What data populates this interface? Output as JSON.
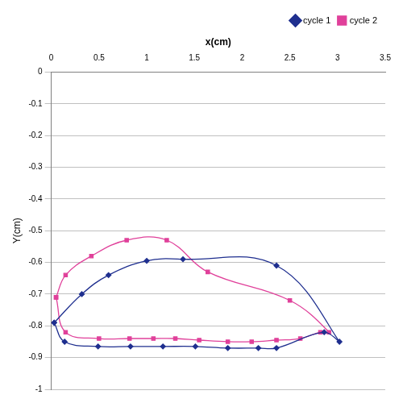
{
  "chart_data": {
    "type": "scatter",
    "x_label": "x(cm)",
    "y_label": "Y(cm)",
    "xlim": [
      0,
      3.5
    ],
    "xticks": [
      0,
      0.5,
      1,
      1.5,
      2,
      2.5,
      3,
      3.5
    ],
    "ylim": [
      -1,
      0
    ],
    "yticks": [
      -1,
      -0.9,
      -0.8,
      -0.7,
      -0.6,
      -0.5,
      -0.4,
      -0.3,
      -0.2,
      -0.1,
      0
    ],
    "grid": true,
    "legend": "top right",
    "series": [
      {
        "name": "cycle 1",
        "color": "#1f2f8f",
        "marker": "diamond",
        "line_style": "smooth",
        "x": [
          0.03,
          0.14,
          0.49,
          0.83,
          1.17,
          1.51,
          1.85,
          2.17,
          2.36,
          2.86,
          3.02,
          2.36,
          1.38,
          1.0,
          0.6,
          0.32,
          0.03
        ],
        "values": [
          -0.79,
          -0.85,
          -0.865,
          -0.865,
          -0.865,
          -0.865,
          -0.87,
          -0.87,
          -0.87,
          -0.82,
          -0.85,
          -0.61,
          -0.59,
          -0.595,
          -0.64,
          -0.7,
          -0.79
        ]
      },
      {
        "name": "cycle 2",
        "color": "#e0409a",
        "marker": "square",
        "line_style": "smooth",
        "x": [
          0.05,
          0.15,
          0.5,
          0.82,
          1.07,
          1.3,
          1.55,
          1.85,
          2.1,
          2.36,
          2.61,
          2.82,
          2.91,
          2.5,
          1.64,
          1.21,
          0.79,
          0.42,
          0.15,
          0.05
        ],
        "values": [
          -0.71,
          -0.82,
          -0.84,
          -0.84,
          -0.84,
          -0.84,
          -0.845,
          -0.85,
          -0.85,
          -0.845,
          -0.84,
          -0.82,
          -0.82,
          -0.72,
          -0.63,
          -0.53,
          -0.53,
          -0.58,
          -0.64,
          -0.71
        ]
      }
    ]
  }
}
